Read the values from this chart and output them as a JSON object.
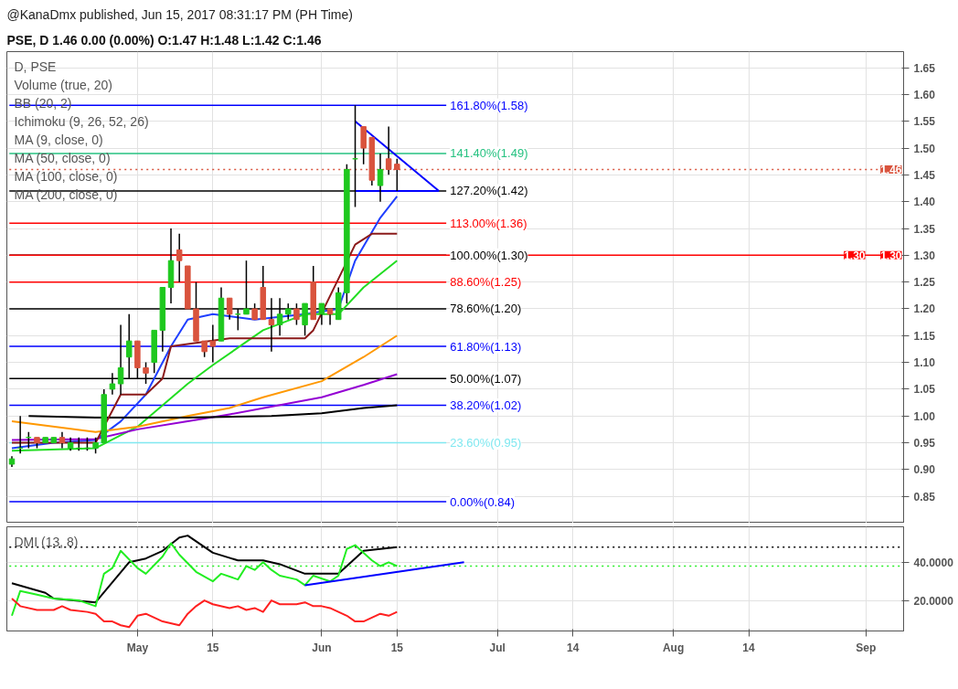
{
  "chart_data": [
    {
      "type": "candlestick",
      "title": "@KanaDmx published, Jun 15, 2017 08:31:17 PM (PH Time)",
      "subtitle": "PSE, D  1.46 0.00 (0.00%) O:1.47 H:1.48 L:1.42 C:1.46",
      "categories": [
        null,
        null,
        null,
        null,
        null,
        null,
        null,
        null,
        null,
        null,
        null,
        null,
        null,
        null,
        null,
        null,
        null,
        null,
        null,
        null,
        null,
        null,
        null,
        null,
        null,
        null,
        null,
        null,
        null,
        null,
        null,
        null,
        null,
        null,
        null,
        null,
        null,
        null,
        null,
        null,
        null,
        null,
        null,
        null,
        null,
        null,
        null,
        null,
        null,
        null,
        null,
        null,
        null,
        null,
        null,
        null,
        null,
        null,
        null,
        null,
        null,
        null,
        null,
        null,
        null,
        null,
        null,
        null,
        null,
        null,
        null,
        null,
        null,
        null,
        null,
        null,
        null,
        null,
        null,
        null,
        null,
        null,
        null,
        null,
        null,
        null,
        null,
        null,
        null,
        null,
        null,
        null,
        null,
        null,
        null,
        null,
        null,
        null,
        null,
        null,
        null,
        null,
        null,
        null,
        null,
        null,
        null
      ],
      "ohlc": [
        [
          0.91,
          0.925,
          0.905,
          0.92
        ],
        [
          0.94,
          1.0,
          0.93,
          0.94
        ],
        [
          0.96,
          0.97,
          0.94,
          0.96
        ],
        [
          0.96,
          0.96,
          0.94,
          0.95
        ],
        [
          0.95,
          0.96,
          0.95,
          0.96
        ],
        [
          0.95,
          0.96,
          0.95,
          0.96
        ],
        [
          0.96,
          0.97,
          0.94,
          0.95
        ],
        [
          0.94,
          0.96,
          0.935,
          0.95
        ],
        [
          0.94,
          0.96,
          0.935,
          0.94
        ],
        [
          0.94,
          0.96,
          0.935,
          0.94
        ],
        [
          0.94,
          0.96,
          0.93,
          0.95
        ],
        [
          0.95,
          1.05,
          0.95,
          1.04
        ],
        [
          1.05,
          1.08,
          1.04,
          1.06
        ],
        [
          1.06,
          1.17,
          1.04,
          1.09
        ],
        [
          1.11,
          1.19,
          1.07,
          1.14
        ],
        [
          1.14,
          1.14,
          1.07,
          1.09
        ],
        [
          1.09,
          1.1,
          1.06,
          1.08
        ],
        [
          1.1,
          1.16,
          1.08,
          1.16
        ],
        [
          1.16,
          1.24,
          1.12,
          1.24
        ],
        [
          1.24,
          1.35,
          1.21,
          1.29
        ],
        [
          1.31,
          1.34,
          1.25,
          1.29
        ],
        [
          1.28,
          1.28,
          1.2,
          1.2
        ],
        [
          1.2,
          1.25,
          1.14,
          1.14
        ],
        [
          1.14,
          1.14,
          1.11,
          1.12
        ],
        [
          1.14,
          1.17,
          1.1,
          1.13
        ],
        [
          1.14,
          1.24,
          1.14,
          1.22
        ],
        [
          1.22,
          1.22,
          1.18,
          1.19
        ],
        [
          1.19,
          1.2,
          1.16,
          1.19
        ],
        [
          1.19,
          1.29,
          1.19,
          1.2
        ],
        [
          1.2,
          1.21,
          1.18,
          1.18
        ],
        [
          1.24,
          1.28,
          1.18,
          1.18
        ],
        [
          1.18,
          1.22,
          1.12,
          1.17
        ],
        [
          1.17,
          1.22,
          1.15,
          1.19
        ],
        [
          1.19,
          1.21,
          1.18,
          1.2
        ],
        [
          1.2,
          1.21,
          1.17,
          1.18
        ],
        [
          1.17,
          1.21,
          1.15,
          1.21
        ],
        [
          1.25,
          1.28,
          1.18,
          1.18
        ],
        [
          1.19,
          1.21,
          1.17,
          1.21
        ],
        [
          1.2,
          1.2,
          1.17,
          1.19
        ],
        [
          1.18,
          1.24,
          1.18,
          1.23
        ],
        [
          1.23,
          1.47,
          1.21,
          1.46
        ],
        [
          1.48,
          1.58,
          1.39,
          1.48
        ],
        [
          1.54,
          1.54,
          1.47,
          1.5
        ],
        [
          1.52,
          1.52,
          1.43,
          1.44
        ],
        [
          1.43,
          1.49,
          1.4,
          1.46
        ],
        [
          1.48,
          1.54,
          1.45,
          1.46
        ],
        [
          1.47,
          1.48,
          1.42,
          1.46
        ],
        null,
        null,
        null,
        null,
        null,
        null,
        null,
        null,
        null,
        null,
        null,
        null,
        null,
        null,
        null,
        null,
        null,
        null,
        null,
        null,
        null,
        null,
        null,
        null,
        null,
        null,
        null,
        null,
        null,
        null,
        null,
        null,
        null,
        null,
        null,
        null,
        null,
        null,
        null,
        null,
        null,
        null,
        null,
        null,
        null,
        null,
        null,
        null,
        null,
        null,
        null,
        null,
        null,
        null,
        null,
        null,
        null,
        null,
        null,
        null
      ],
      "colors": [
        "#1ec81e",
        "#1ec81e",
        "#1ec81e",
        "#d9533d",
        "#1ec81e",
        "#1ec81e",
        "#d9533d",
        "#1ec81e",
        "#1ec81e",
        "#1ec81e",
        "#1ec81e",
        "#1ec81e",
        "#1ec81e",
        "#1ec81e",
        "#1ec81e",
        "#d9533d",
        "#d9533d",
        "#1ec81e",
        "#1ec81e",
        "#1ec81e",
        "#d9533d",
        "#d9533d",
        "#d9533d",
        "#d9533d",
        "#d9533d",
        "#1ec81e",
        "#d9533d",
        "#1ec81e",
        "#1ec81e",
        "#d9533d",
        "#d9533d",
        "#d9533d",
        "#1ec81e",
        "#1ec81e",
        "#d9533d",
        "#1ec81e",
        "#d9533d",
        "#1ec81e",
        "#d9533d",
        "#1ec81e",
        "#1ec81e",
        "#1ec81e",
        "#d9533d",
        "#d9533d",
        "#1ec81e",
        "#d9533d",
        "#d9533d",
        null,
        null,
        null,
        null,
        null,
        null,
        null,
        null,
        null,
        null,
        null,
        null,
        null,
        null,
        null,
        null,
        null,
        null,
        null,
        null,
        null,
        null,
        null,
        null,
        null,
        null,
        null,
        null,
        null,
        null,
        null,
        null,
        null,
        null,
        null,
        null,
        null,
        null,
        null,
        null,
        null,
        null,
        null,
        null,
        null,
        null,
        null,
        null,
        null,
        null,
        null,
        null,
        null,
        null,
        null,
        null,
        null,
        null,
        null,
        null
      ],
      "series": [
        {
          "type": "line",
          "color": "#1f3fff",
          "values": [
            0.94,
            null,
            null,
            null,
            null,
            0.95,
            null,
            null,
            null,
            null,
            0.955,
            null,
            null,
            0.99,
            null,
            null,
            1.04,
            null,
            null,
            1.13,
            null,
            1.18,
            null,
            null,
            1.19,
            null,
            null,
            null,
            null,
            1.18,
            null,
            null,
            null,
            null,
            null,
            1.19,
            null,
            null,
            null,
            1.2,
            null,
            1.29,
            null,
            null,
            1.37,
            null,
            1.41,
            null,
            null,
            null,
            null,
            null,
            null,
            null,
            null,
            null,
            null,
            null,
            null,
            null,
            null,
            null,
            null,
            null,
            null,
            null,
            null,
            null,
            null,
            null,
            null,
            null,
            null,
            null,
            null,
            null,
            null,
            null,
            null,
            null,
            null,
            null,
            null,
            null,
            null,
            null,
            null,
            null,
            null,
            null,
            null,
            null,
            null,
            null,
            null,
            null,
            null,
            null,
            null,
            null,
            null,
            null,
            null,
            null,
            null,
            null,
            null
          ]
        },
        {
          "type": "line",
          "color": "#22dd22",
          "values": [
            0.935,
            null,
            null,
            null,
            null,
            null,
            null,
            null,
            null,
            null,
            0.94,
            null,
            null,
            null,
            null,
            0.98,
            null,
            null,
            null,
            null,
            null,
            1.06,
            null,
            null,
            1.095,
            null,
            null,
            null,
            null,
            null,
            1.16,
            null,
            null,
            null,
            null,
            1.19,
            null,
            null,
            null,
            1.19,
            null,
            null,
            1.24,
            null,
            null,
            null,
            1.29,
            null,
            null,
            null,
            null,
            null,
            null,
            null,
            null,
            null,
            null,
            null,
            null,
            null,
            null,
            null,
            null,
            null,
            null,
            null,
            null,
            null,
            null,
            null,
            null,
            null,
            null,
            null,
            null,
            null,
            null,
            null,
            null,
            null,
            null,
            null,
            null,
            null,
            null,
            null,
            null,
            null,
            null,
            null,
            null,
            null,
            null,
            null,
            null,
            null,
            null,
            null,
            null,
            null,
            null,
            null,
            null,
            null,
            null,
            null,
            null
          ]
        },
        {
          "type": "line",
          "color": "#ff9800",
          "values": [
            0.99,
            null,
            null,
            null,
            null,
            null,
            null,
            null,
            null,
            null,
            0.97,
            null,
            null,
            null,
            null,
            0.98,
            null,
            null,
            null,
            null,
            null,
            1.0,
            null,
            null,
            null,
            null,
            1.015,
            null,
            null,
            null,
            1.035,
            null,
            null,
            null,
            null,
            null,
            null,
            1.065,
            null,
            null,
            null,
            null,
            1.11,
            null,
            null,
            null,
            1.15,
            null,
            null,
            null,
            null,
            null,
            null,
            null,
            null,
            null,
            null,
            null,
            null,
            null,
            null,
            null,
            null,
            null,
            null,
            null,
            null,
            null,
            null,
            null,
            null,
            null,
            null,
            null,
            null,
            null,
            null,
            null,
            null,
            null,
            null,
            null,
            null,
            null,
            null,
            null,
            null,
            null,
            null,
            null,
            null,
            null,
            null,
            null,
            null,
            null,
            null,
            null,
            null,
            null,
            null,
            null,
            null,
            null,
            null,
            null,
            null
          ]
        },
        {
          "type": "line",
          "color": "#9400d3",
          "values": [
            0.955,
            null,
            null,
            null,
            null,
            null,
            null,
            null,
            null,
            null,
            0.957,
            null,
            null,
            null,
            null,
            0.975,
            null,
            null,
            null,
            null,
            null,
            0.99,
            null,
            null,
            null,
            null,
            1.003,
            null,
            null,
            null,
            null,
            null,
            null,
            null,
            null,
            null,
            null,
            1.035,
            null,
            null,
            null,
            null,
            1.058,
            null,
            null,
            null,
            1.078,
            null,
            null,
            null,
            null,
            null,
            null,
            null,
            null,
            null,
            null,
            null,
            null,
            null,
            null,
            null,
            null,
            null,
            null,
            null,
            null,
            null,
            null,
            null,
            null,
            null,
            null,
            null,
            null,
            null,
            null,
            null,
            null,
            null,
            null,
            null,
            null,
            null,
            null,
            null,
            null,
            null,
            null,
            null,
            null,
            null,
            null,
            null,
            null,
            null,
            null,
            null,
            null,
            null,
            null,
            null,
            null,
            null,
            null,
            null,
            null
          ]
        },
        {
          "type": "line",
          "color": "#000000",
          "values": [
            null,
            null,
            1.0,
            null,
            null,
            null,
            null,
            null,
            null,
            null,
            0.997,
            null,
            null,
            null,
            null,
            null,
            null,
            null,
            null,
            null,
            null,
            0.997,
            null,
            null,
            null,
            null,
            null,
            null,
            null,
            null,
            null,
            1.0,
            null,
            null,
            null,
            null,
            null,
            1.005,
            null,
            null,
            null,
            null,
            1.015,
            null,
            null,
            null,
            1.02,
            null,
            null,
            null,
            null,
            null,
            null,
            null,
            null,
            null,
            null,
            null,
            null,
            null,
            null,
            null,
            null,
            null,
            null,
            null,
            null,
            null,
            null,
            null,
            null,
            null,
            null,
            null,
            null,
            null,
            null,
            null,
            null,
            null,
            null,
            null,
            null,
            null,
            null,
            null,
            null,
            null,
            null,
            null,
            null,
            null,
            null,
            null,
            null,
            null,
            null,
            null,
            null,
            null,
            null,
            null,
            null,
            null,
            null,
            null,
            null
          ]
        },
        {
          "type": "line",
          "color": "#8b1a1a",
          "values": [
            0.95,
            null,
            null,
            null,
            null,
            null,
            null,
            null,
            null,
            null,
            0.95,
            null,
            null,
            1.04,
            null,
            null,
            1.04,
            null,
            1.07,
            1.13,
            null,
            null,
            null,
            null,
            null,
            null,
            1.145,
            null,
            null,
            null,
            null,
            null,
            null,
            null,
            null,
            1.145,
            1.16,
            null,
            null,
            null,
            null,
            1.32,
            null,
            1.34,
            null,
            null,
            1.34,
            null,
            null,
            null,
            null,
            null,
            null,
            null,
            null,
            null,
            null,
            null,
            null,
            null,
            null,
            null,
            null,
            null,
            null,
            null,
            null,
            null,
            null,
            null,
            null,
            null,
            null,
            null,
            null,
            null,
            null,
            null,
            null,
            null,
            null,
            null,
            null,
            null,
            null,
            null,
            null,
            null,
            null,
            null,
            null,
            null,
            null,
            null,
            null,
            null,
            null,
            null,
            null,
            null,
            null,
            null,
            null,
            null,
            null,
            null,
            null
          ]
        },
        {
          "type": "line",
          "color": "#0000ff",
          "values": [
            null,
            null,
            null,
            null,
            null,
            null,
            null,
            null,
            null,
            null,
            null,
            null,
            null,
            null,
            null,
            null,
            null,
            null,
            null,
            null,
            null,
            null,
            null,
            null,
            null,
            null,
            null,
            null,
            null,
            null,
            null,
            null,
            null,
            null,
            null,
            null,
            null,
            null,
            null,
            null,
            null,
            1.55,
            null,
            null,
            null,
            null,
            null,
            null,
            null,
            null,
            null,
            1.42,
            null,
            null,
            null,
            null,
            null,
            null,
            null,
            null,
            null,
            null,
            null,
            null,
            null,
            null,
            null,
            null,
            null,
            null,
            null,
            null,
            null,
            null,
            null,
            null,
            null,
            null,
            null,
            null,
            null,
            null,
            null,
            null,
            null,
            null,
            null,
            null,
            null,
            null,
            null,
            null,
            null,
            null,
            null,
            null,
            null,
            null,
            null,
            null,
            null,
            null,
            null,
            null,
            null,
            null,
            null
          ]
        },
        {
          "type": "line",
          "color": "#0000ff",
          "values": [
            null,
            null,
            null,
            null,
            null,
            null,
            null,
            null,
            null,
            null,
            null,
            null,
            null,
            null,
            null,
            null,
            null,
            null,
            null,
            null,
            null,
            null,
            null,
            null,
            null,
            null,
            null,
            null,
            null,
            null,
            null,
            null,
            null,
            null,
            null,
            null,
            null,
            null,
            null,
            null,
            null,
            1.42,
            null,
            null,
            null,
            null,
            null,
            null,
            null,
            null,
            null,
            1.42,
            null,
            null,
            null,
            null,
            null,
            null,
            null,
            null,
            null,
            null,
            null,
            null,
            null,
            null,
            null,
            null,
            null,
            null,
            null,
            null,
            null,
            null,
            null,
            null,
            null,
            null,
            null,
            null,
            null,
            null,
            null,
            null,
            null,
            null,
            null,
            null,
            null,
            null,
            null,
            null,
            null,
            null,
            null,
            null,
            null,
            null,
            null,
            null,
            null,
            null,
            null,
            null,
            null,
            null,
            null
          ]
        }
      ],
      "ref_lines": [
        {
          "axis": "y",
          "value": 1.58,
          "label": "161.80%(1.58)",
          "color": "#0000ff"
        },
        {
          "axis": "y",
          "value": 1.49,
          "label": "141.40%(1.49)",
          "color": "#26c281"
        },
        {
          "axis": "y",
          "value": 1.42,
          "label": "127.20%(1.42)",
          "color": "#000000"
        },
        {
          "axis": "y",
          "value": 1.36,
          "label": "113.00%(1.36)",
          "color": "#ff0000"
        },
        {
          "axis": "y",
          "value": 1.3,
          "label": "100.00%(1.30)",
          "color": "#000000"
        },
        {
          "axis": "y",
          "value": 1.25,
          "label": "88.60%(1.25)",
          "color": "#ff0000"
        },
        {
          "axis": "y",
          "value": 1.2,
          "label": "78.60%(1.20)",
          "color": "#000000"
        },
        {
          "axis": "y",
          "value": 1.13,
          "label": "61.80%(1.13)",
          "color": "#0000ff"
        },
        {
          "axis": "y",
          "value": 1.07,
          "label": "50.00%(1.07)",
          "color": "#000000"
        },
        {
          "axis": "y",
          "value": 1.02,
          "label": "38.20%(1.02)",
          "color": "#0000ff"
        },
        {
          "axis": "y",
          "value": 0.95,
          "label": "23.60%(0.95)",
          "color": "#80e8f0"
        },
        {
          "axis": "y",
          "value": 0.84,
          "label": "0.00%(0.84)",
          "color": "#0000ff"
        },
        {
          "axis": "y",
          "value": 1.46,
          "color": "#d9533d",
          "line_style": "dotted"
        },
        {
          "axis": "y",
          "value": 1.3,
          "color": "#ff0000"
        }
      ],
      "annotations": [
        "D, PSE",
        "Volume (true, 20)",
        "BB (20, 2)",
        "Ichimoku (9, 26, 52, 26)",
        "MA (9, close, 0)",
        "MA (50, close, 0)",
        "MA (100, close, 0)",
        "MA (200, close, 0)",
        {
          "text": "1.46",
          "y": 1.46
        },
        {
          "text": "1.30",
          "y": 1.3
        },
        {
          "text": "1.30",
          "y": 1.3
        }
      ],
      "ylim": [
        0.8,
        1.68
      ],
      "yticks": [
        0.85,
        {
          "value": 0.9,
          "label": "0.90"
        },
        0.95,
        {
          "value": 1.0,
          "label": "1.00"
        },
        1.05,
        {
          "value": 1.1,
          "label": "1.10"
        },
        1.15,
        {
          "value": 1.2,
          "label": "1.20"
        },
        1.25,
        {
          "value": 1.3,
          "label": "1.30"
        },
        1.35,
        {
          "value": 1.4,
          "label": "1.40"
        },
        1.45,
        {
          "value": 1.5,
          "label": "1.50"
        },
        1.55,
        {
          "value": 1.6,
          "label": "1.60"
        },
        1.65
      ],
      "grid": true,
      "tick_labels": "y"
    },
    {
      "type": "line",
      "title": "DMI (13, 8)",
      "categories": [
        null,
        null,
        null,
        null,
        null,
        null,
        null,
        null,
        null,
        null,
        null,
        null,
        null,
        null,
        null,
        "May",
        null,
        null,
        null,
        null,
        null,
        null,
        null,
        null,
        "15",
        null,
        null,
        null,
        null,
        null,
        null,
        null,
        null,
        null,
        null,
        null,
        null,
        "Jun",
        null,
        null,
        null,
        null,
        null,
        null,
        null,
        null,
        "15",
        null,
        null,
        null,
        null,
        null,
        null,
        null,
        null,
        null,
        null,
        null,
        "Jul",
        null,
        null,
        null,
        null,
        null,
        null,
        null,
        null,
        "14",
        null,
        null,
        null,
        null,
        null,
        null,
        null,
        null,
        null,
        null,
        null,
        "Aug",
        null,
        null,
        null,
        null,
        null,
        null,
        null,
        null,
        "14",
        null,
        null,
        null,
        null,
        null,
        null,
        null,
        null,
        null,
        null,
        null,
        null,
        null,
        "Sep",
        null,
        null,
        null,
        null
      ],
      "series": [
        {
          "color": "#000000",
          "values": [
            29,
            null,
            null,
            null,
            24,
            21,
            null,
            null,
            null,
            null,
            19,
            null,
            null,
            null,
            40,
            null,
            42,
            null,
            46,
            null,
            53,
            54,
            51,
            null,
            45,
            null,
            null,
            41,
            null,
            41,
            41,
            null,
            39,
            null,
            null,
            34,
            null,
            null,
            null,
            34,
            38,
            null,
            46,
            null,
            47,
            null,
            48,
            null,
            null,
            null,
            null,
            null,
            null,
            null,
            null,
            null,
            null,
            null,
            null,
            null,
            null,
            null,
            null,
            null,
            null,
            null,
            null,
            null,
            null,
            null,
            null,
            null,
            null,
            null,
            null,
            null,
            null,
            null,
            null,
            null,
            null,
            null,
            null,
            null,
            null,
            null,
            null,
            null,
            null,
            null,
            null,
            null,
            null,
            null,
            null,
            null,
            null,
            null,
            null,
            null,
            null,
            null,
            null,
            null,
            null,
            null,
            null
          ]
        },
        {
          "color": "#22ee22",
          "values": [
            12,
            25,
            null,
            23,
            null,
            21,
            null,
            null,
            20,
            null,
            17,
            34,
            37,
            46,
            null,
            37,
            34,
            null,
            43,
            50,
            44,
            null,
            35,
            null,
            30,
            34,
            null,
            31,
            38,
            36,
            40,
            36,
            33,
            null,
            31,
            28,
            33,
            null,
            30,
            33,
            47,
            49,
            45,
            41,
            38,
            40,
            38,
            null,
            null,
            null,
            null,
            null,
            null,
            null,
            null,
            null,
            null,
            null,
            null,
            null,
            null,
            null,
            null,
            null,
            null,
            null,
            null,
            null,
            null,
            null,
            null,
            null,
            null,
            null,
            null,
            null,
            null,
            null,
            null,
            null,
            null,
            null,
            null,
            null,
            null,
            null,
            null,
            null,
            null,
            null,
            null,
            null,
            null,
            null,
            null,
            null,
            null,
            null,
            null,
            null,
            null,
            null,
            null,
            null,
            null,
            null,
            null
          ]
        },
        {
          "color": "#ff2020",
          "values": [
            21,
            17,
            null,
            15,
            null,
            15,
            17,
            15,
            null,
            14,
            13,
            9,
            9,
            7,
            6,
            12,
            13,
            null,
            9,
            null,
            7,
            13,
            17,
            20,
            18,
            null,
            16,
            17,
            15,
            16,
            14,
            20,
            18,
            null,
            18,
            19,
            17,
            17,
            16,
            14,
            12,
            9,
            9,
            11,
            13,
            12,
            14,
            null,
            null,
            null,
            null,
            null,
            null,
            null,
            null,
            null,
            null,
            null,
            null,
            null,
            null,
            null,
            null,
            null,
            null,
            null,
            null,
            null,
            null,
            null,
            null,
            null,
            null,
            null,
            null,
            null,
            null,
            null,
            null,
            null,
            null,
            null,
            null,
            null,
            null,
            null,
            null,
            null,
            null,
            null,
            null,
            null,
            null,
            null,
            null,
            null,
            null,
            null,
            null,
            null,
            null,
            null,
            null,
            null,
            null,
            null,
            null
          ]
        },
        {
          "color": "#0000ff",
          "values": [
            null,
            null,
            null,
            null,
            null,
            null,
            null,
            null,
            null,
            null,
            null,
            null,
            null,
            null,
            null,
            null,
            null,
            null,
            null,
            null,
            null,
            null,
            null,
            null,
            null,
            null,
            null,
            null,
            null,
            null,
            null,
            null,
            null,
            null,
            null,
            28,
            null,
            null,
            null,
            null,
            null,
            null,
            null,
            null,
            null,
            null,
            null,
            null,
            null,
            null,
            null,
            null,
            null,
            null,
            40,
            null,
            null,
            null,
            null,
            null,
            null,
            null,
            null,
            null,
            null,
            null,
            null,
            null,
            null,
            null,
            null,
            null,
            null,
            null,
            null,
            null,
            null,
            null,
            null,
            null,
            null,
            null,
            null,
            null,
            null,
            null,
            null,
            null,
            null,
            null,
            null,
            null,
            null,
            null,
            null,
            null,
            null,
            null,
            null,
            null,
            null,
            null,
            null,
            null,
            null,
            null,
            null
          ]
        }
      ],
      "ref_lines": [
        {
          "axis": "y",
          "value": 48,
          "color": "#000000",
          "line_style": "dotted"
        },
        {
          "axis": "y",
          "value": 38,
          "color": "#22ee22",
          "line_style": "dotted"
        }
      ],
      "ylim": [
        4,
        58.6
      ],
      "yticks": [
        {
          "value": 20,
          "label": "20.0000"
        },
        {
          "value": 40,
          "label": "40.0000"
        }
      ],
      "grid": true
    }
  ]
}
